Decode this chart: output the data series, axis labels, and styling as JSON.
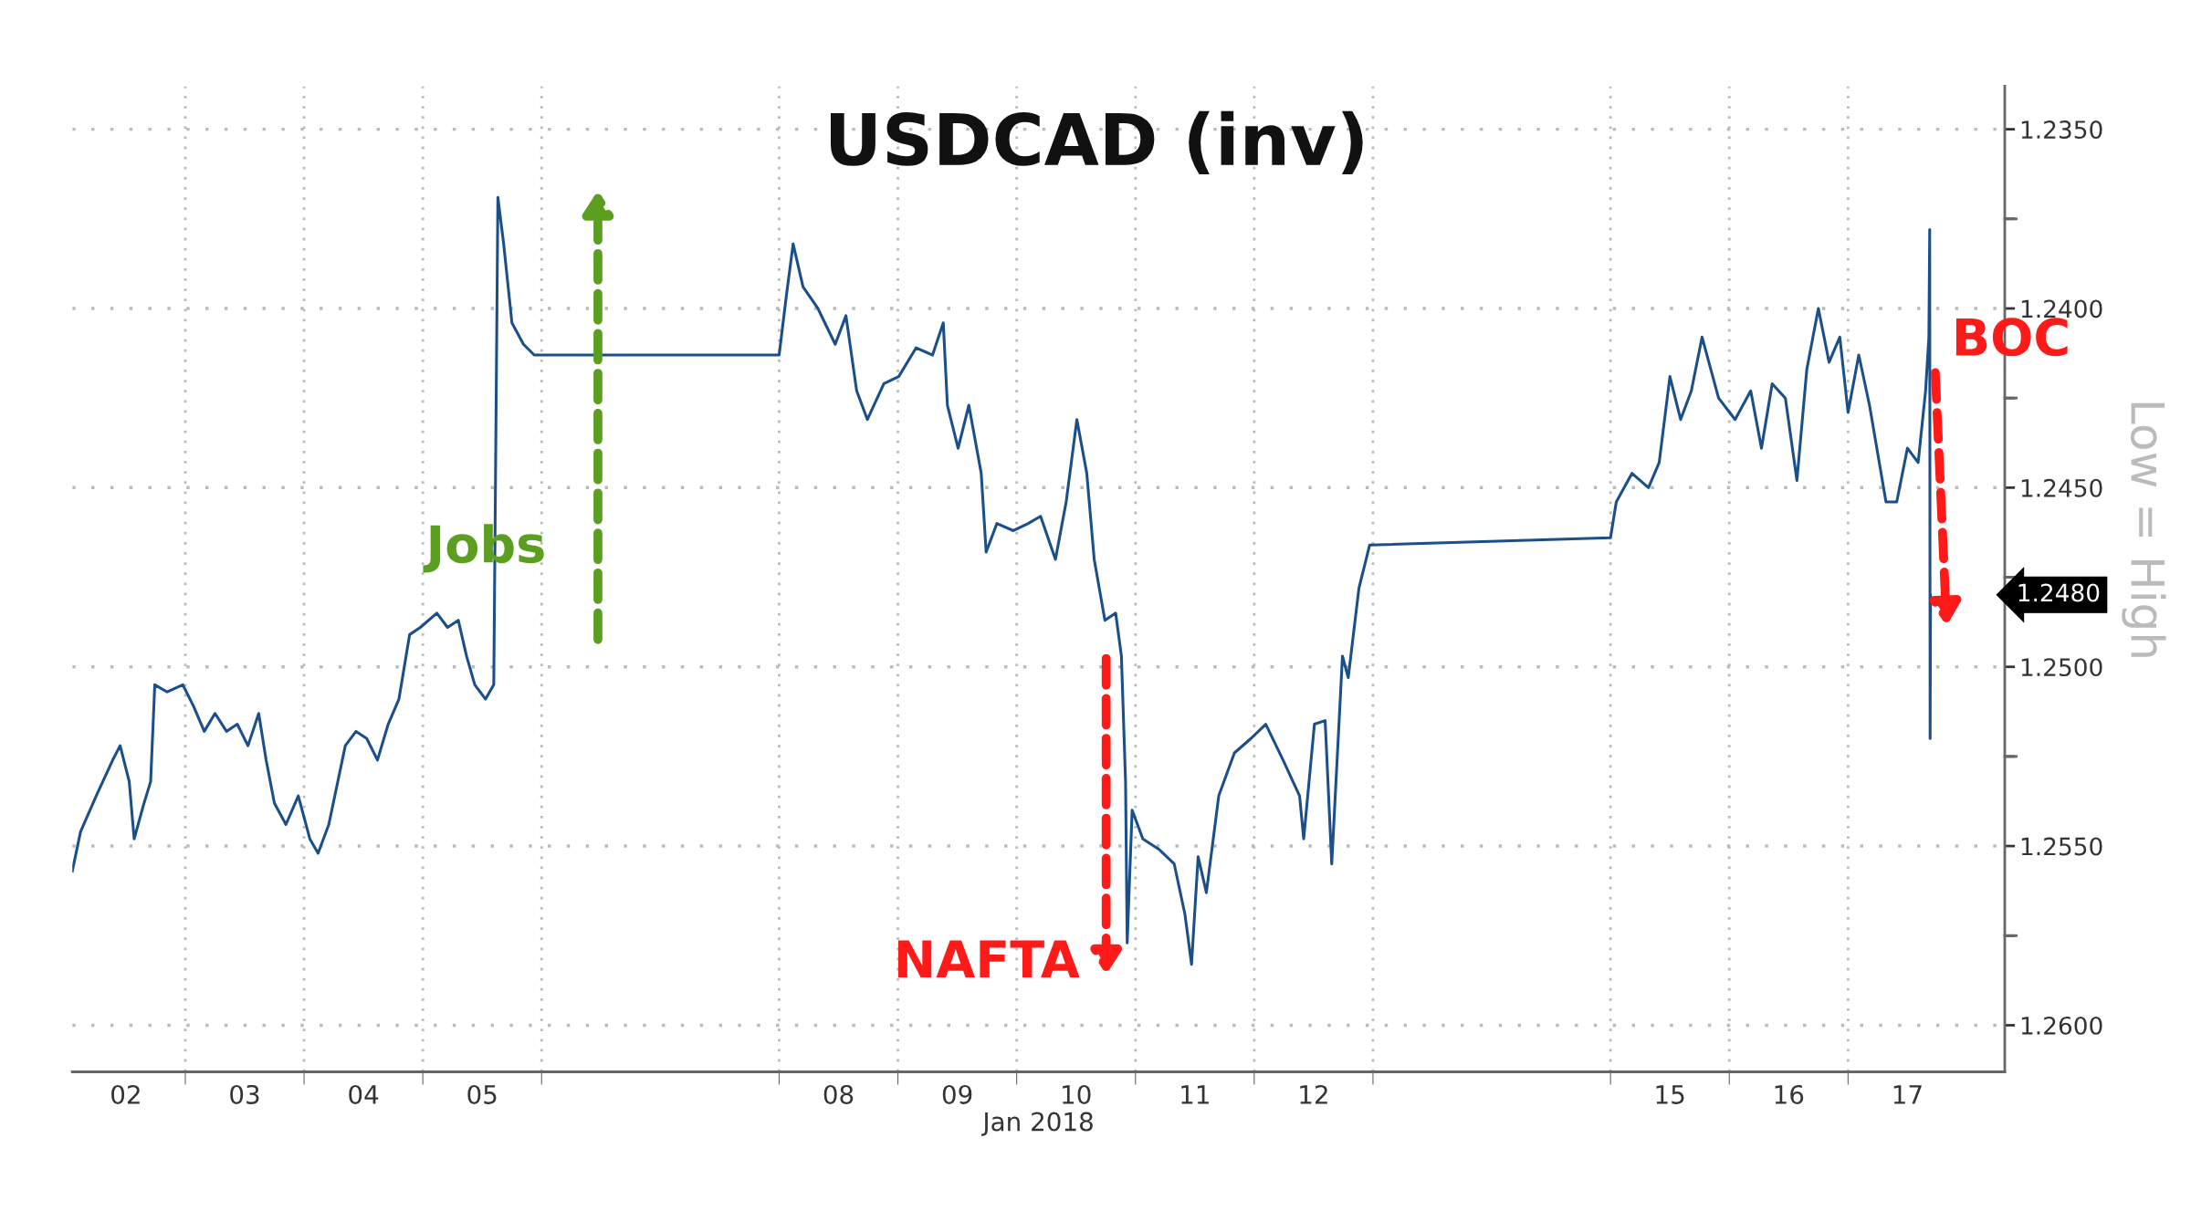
{
  "chart_data": {
    "type": "line",
    "title": "USDCAD (inv)",
    "xlabel": "Jan 2018",
    "x": [
      "2018-01-02T01:10",
      "2018-01-02T02:50",
      "2018-01-02T06:00",
      "2018-01-02T09:20",
      "2018-01-02T10:50",
      "2018-01-02T12:40",
      "2018-01-02T13:40",
      "2018-01-02T15:40",
      "2018-01-02T17:00",
      "2018-01-02T17:50",
      "2018-01-02T20:20",
      "2018-01-02T23:30",
      "2018-01-03T01:40",
      "2018-01-03T03:50",
      "2018-01-03T06:00",
      "2018-01-03T08:20",
      "2018-01-03T10:30",
      "2018-01-03T12:40",
      "2018-01-03T14:50",
      "2018-01-03T16:20",
      "2018-01-03T18:00",
      "2018-01-03T20:20",
      "2018-01-03T22:50",
      "2018-01-04T01:10",
      "2018-01-04T02:50",
      "2018-01-04T05:00",
      "2018-01-04T08:20",
      "2018-01-04T10:30",
      "2018-01-04T12:40",
      "2018-01-04T14:50",
      "2018-01-04T17:00",
      "2018-01-04T19:10",
      "2018-01-04T21:20",
      "2018-01-04T23:30",
      "2018-01-05T02:50",
      "2018-01-05T05:00",
      "2018-01-05T07:10",
      "2018-01-05T08:50",
      "2018-01-05T10:30",
      "2018-01-05T12:40",
      "2018-01-05T14:20",
      "2018-01-05T15:10",
      "2018-01-05T16:20",
      "2018-01-05T18:00",
      "2018-01-05T20:20",
      "2018-01-05T22:30",
      "2018-01-08T00:00",
      "2018-01-08T01:30",
      "2018-01-08T02:50",
      "2018-01-08T04:50",
      "2018-01-08T07:50",
      "2018-01-08T11:20",
      "2018-01-08T13:30",
      "2018-01-08T15:40",
      "2018-01-08T17:50",
      "2018-01-08T21:10",
      "2018-01-09T00:10",
      "2018-01-09T03:40",
      "2018-01-09T07:00",
      "2018-01-09T09:10",
      "2018-01-09T10:00",
      "2018-01-09T12:10",
      "2018-01-09T14:20",
      "2018-01-09T16:50",
      "2018-01-09T17:50",
      "2018-01-09T20:00",
      "2018-01-09T23:20",
      "2018-01-10T02:20",
      "2018-01-10T04:50",
      "2018-01-10T07:50",
      "2018-01-10T10:00",
      "2018-01-10T12:10",
      "2018-01-10T14:10",
      "2018-01-10T15:40",
      "2018-01-10T17:50",
      "2018-01-10T20:00",
      "2018-01-10T21:10",
      "2018-01-10T22:00",
      "2018-01-10T22:20",
      "2018-01-10T23:20",
      "2018-01-11T01:30",
      "2018-01-11T04:50",
      "2018-01-11T07:50",
      "2018-01-11T10:00",
      "2018-01-11T11:20",
      "2018-01-11T12:40",
      "2018-01-11T14:20",
      "2018-01-11T16:50",
      "2018-01-11T20:00",
      "2018-01-11T23:20",
      "2018-01-12T02:20",
      "2018-01-12T05:50",
      "2018-01-12T09:10",
      "2018-01-12T10:00",
      "2018-01-12T12:10",
      "2018-01-12T14:20",
      "2018-01-12T15:40",
      "2018-01-12T17:50",
      "2018-01-12T19:00",
      "2018-01-12T21:10",
      "2018-01-12T23:20",
      "2018-01-15T00:00",
      "2018-01-15T01:10",
      "2018-01-15T04:20",
      "2018-01-15T07:40",
      "2018-01-15T09:50",
      "2018-01-15T12:00",
      "2018-01-15T14:10",
      "2018-01-15T16:20",
      "2018-01-15T18:30",
      "2018-01-15T21:50",
      "2018-01-16T01:10",
      "2018-01-16T04:20",
      "2018-01-16T06:30",
      "2018-01-16T08:40",
      "2018-01-16T11:20",
      "2018-01-16T13:40",
      "2018-01-16T15:40",
      "2018-01-16T18:00",
      "2018-01-16T20:10",
      "2018-01-16T22:20",
      "2018-01-17T00:00",
      "2018-01-17T02:10",
      "2018-01-17T04:20",
      "2018-01-17T07:40",
      "2018-01-17T09:50",
      "2018-01-17T12:00",
      "2018-01-17T14:10",
      "2018-01-17T15:40",
      "2018-01-17T16:20",
      "2018-01-17T16:30",
      "2018-01-17T16:35",
      "2018-01-17T16:40"
    ],
    "series": [
      {
        "color": "#1b4f8a",
        "values": [
          1.2557,
          1.2546,
          1.2536,
          1.2526,
          1.2522,
          1.2532,
          1.2548,
          1.2538,
          1.2532,
          1.2505,
          1.2507,
          1.2505,
          1.2511,
          1.2518,
          1.2513,
          1.2518,
          1.2516,
          1.2522,
          1.2513,
          1.2526,
          1.2538,
          1.2544,
          1.2536,
          1.2548,
          1.2552,
          1.2544,
          1.2522,
          1.2518,
          1.252,
          1.2526,
          1.2516,
          1.2509,
          1.2491,
          1.2489,
          1.2485,
          1.2489,
          1.2487,
          1.2497,
          1.2505,
          1.2509,
          1.2505,
          1.2369,
          1.2382,
          1.2404,
          1.241,
          1.2413,
          1.2413,
          1.2396,
          1.2382,
          1.2394,
          1.24,
          1.241,
          1.2402,
          1.2423,
          1.2431,
          1.2421,
          1.2419,
          1.2411,
          1.2413,
          1.2404,
          1.2427,
          1.2439,
          1.2427,
          1.2446,
          1.2468,
          1.246,
          1.2462,
          1.246,
          1.2458,
          1.247,
          1.2454,
          1.2431,
          1.2446,
          1.247,
          1.2487,
          1.2485,
          1.2497,
          1.2532,
          1.2577,
          1.254,
          1.2548,
          1.2551,
          1.2555,
          1.2569,
          1.2583,
          1.2553,
          1.2563,
          1.2536,
          1.2524,
          1.252,
          1.2516,
          1.2526,
          1.2536,
          1.2548,
          1.2516,
          1.2515,
          1.2555,
          1.2497,
          1.2503,
          1.2478,
          1.2466,
          1.2464,
          1.2454,
          1.2446,
          1.245,
          1.2443,
          1.2419,
          1.2431,
          1.2423,
          1.2408,
          1.2425,
          1.2431,
          1.2423,
          1.2439,
          1.2421,
          1.2425,
          1.2448,
          1.2417,
          1.24,
          1.2415,
          1.2408,
          1.2429,
          1.2413,
          1.2427,
          1.2454,
          1.2454,
          1.2439,
          1.2443,
          1.2423,
          1.2408,
          1.2378,
          1.252,
          1.248
        ]
      }
    ],
    "xlim": [
      "2018-01-02T01:10",
      "2018-01-18T07:40"
    ],
    "xticks": [
      {
        "value": "2018-01-03",
        "label": null
      },
      {
        "value": "2018-01-04",
        "label": null
      },
      {
        "value": "2018-01-05",
        "label": null
      },
      {
        "value": "2018-01-06",
        "label": null
      },
      {
        "value": "2018-01-08",
        "label": null
      },
      {
        "value": "2018-01-09",
        "label": null
      },
      {
        "value": "2018-01-10",
        "label": null
      },
      {
        "value": "2018-01-11",
        "label": null
      },
      {
        "value": "2018-01-12",
        "label": null
      },
      {
        "value": "2018-01-13",
        "label": null
      },
      {
        "value": "2018-01-15",
        "label": null
      },
      {
        "value": "2018-01-16",
        "label": null
      },
      {
        "value": "2018-01-17",
        "label": null
      },
      {
        "value": "2018-01-02T12:00",
        "label": "02"
      },
      {
        "value": "2018-01-03T12:00",
        "label": "03"
      },
      {
        "value": "2018-01-04T12:00",
        "label": "04"
      },
      {
        "value": "2018-01-05T12:00",
        "label": "05"
      },
      {
        "value": "2018-01-08T12:00",
        "label": "08"
      },
      {
        "value": "2018-01-09T12:00",
        "label": "09"
      },
      {
        "value": "2018-01-10T12:00",
        "label": "10"
      },
      {
        "value": "2018-01-11T12:00",
        "label": "11"
      },
      {
        "value": "2018-01-12T12:00",
        "label": "12"
      },
      {
        "value": "2018-01-15T12:00",
        "label": "15"
      },
      {
        "value": "2018-01-16T12:00",
        "label": "16"
      },
      {
        "value": "2018-01-17T12:00",
        "label": "17"
      }
    ],
    "ylim": [
      1.2613,
      1.2338
    ],
    "yticks": [
      {
        "value": 1.235,
        "label": "1.2350"
      },
      {
        "value": 1.2375,
        "label": null
      },
      {
        "value": 1.24,
        "label": "1.2400"
      },
      {
        "value": 1.2425,
        "label": null
      },
      {
        "value": 1.245,
        "label": "1.2450"
      },
      {
        "value": 1.2475,
        "label": null
      },
      {
        "value": 1.25,
        "label": "1.2500"
      },
      {
        "value": 1.2525,
        "label": null
      },
      {
        "value": 1.255,
        "label": "1.2550"
      },
      {
        "value": 1.2575,
        "label": null
      },
      {
        "value": 1.26,
        "label": "1.2600"
      }
    ],
    "grid": true,
    "legend": false,
    "line_style": "solid",
    "marker": "none",
    "annotations": [
      "Jobs",
      "NAFTA",
      "BOC",
      "1.2480",
      "Low = High"
    ]
  }
}
